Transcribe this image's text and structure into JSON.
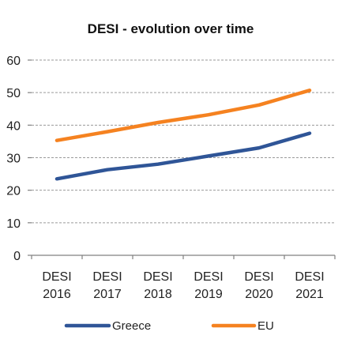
{
  "chart_data": {
    "type": "line",
    "title": "DESI - evolution over time",
    "categories": [
      [
        "DESI",
        "2016"
      ],
      [
        "DESI",
        "2017"
      ],
      [
        "DESI",
        "2018"
      ],
      [
        "DESI",
        "2019"
      ],
      [
        "DESI",
        "2020"
      ],
      [
        "DESI",
        "2021"
      ]
    ],
    "series": [
      {
        "name": "Greece",
        "color": "#2f5597",
        "values": [
          23.5,
          26.3,
          28.0,
          30.5,
          33.0,
          37.5
        ]
      },
      {
        "name": "EU",
        "color": "#f58220",
        "values": [
          35.3,
          38.0,
          40.8,
          43.2,
          46.2,
          50.7
        ]
      }
    ],
    "ylim": [
      0,
      60
    ],
    "yticks": [
      0,
      10,
      20,
      30,
      40,
      50,
      60
    ],
    "grid": true,
    "legend": "bottom"
  }
}
